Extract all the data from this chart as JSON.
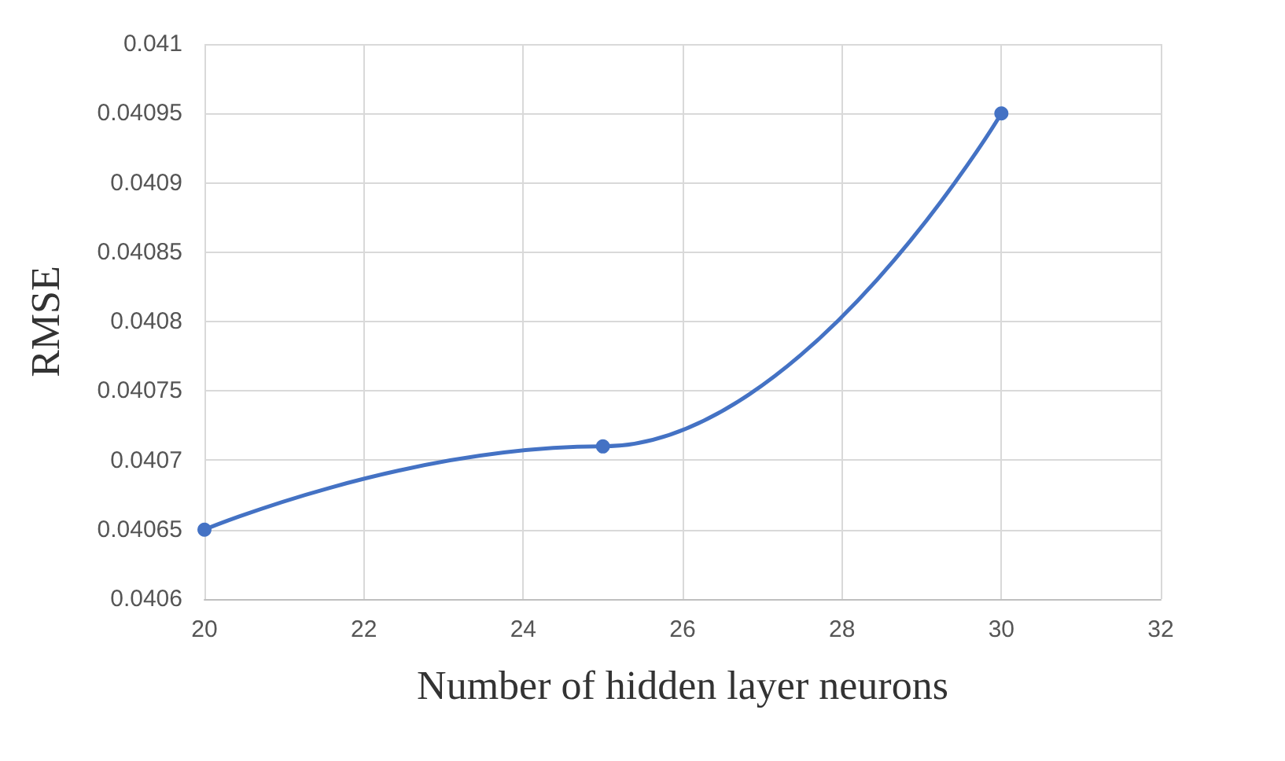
{
  "chart_data": {
    "type": "line",
    "xlabel": "Number of hidden layer neurons",
    "ylabel": "RMSE",
    "x": [
      20,
      25,
      30
    ],
    "series": [
      {
        "color": "#4472c4",
        "values": [
          0.04065,
          0.04071,
          0.04095
        ]
      }
    ],
    "xlim": [
      20,
      32
    ],
    "xticks": [
      20,
      22,
      24,
      26,
      28,
      30,
      32
    ],
    "ylim": [
      0.0406,
      0.041
    ],
    "yticks": [
      0.0406,
      0.04065,
      0.0407,
      0.04075,
      0.0408,
      0.04085,
      0.0409,
      0.04095,
      0.041
    ],
    "grid": true,
    "marker": "circle",
    "line_style": "solid"
  }
}
